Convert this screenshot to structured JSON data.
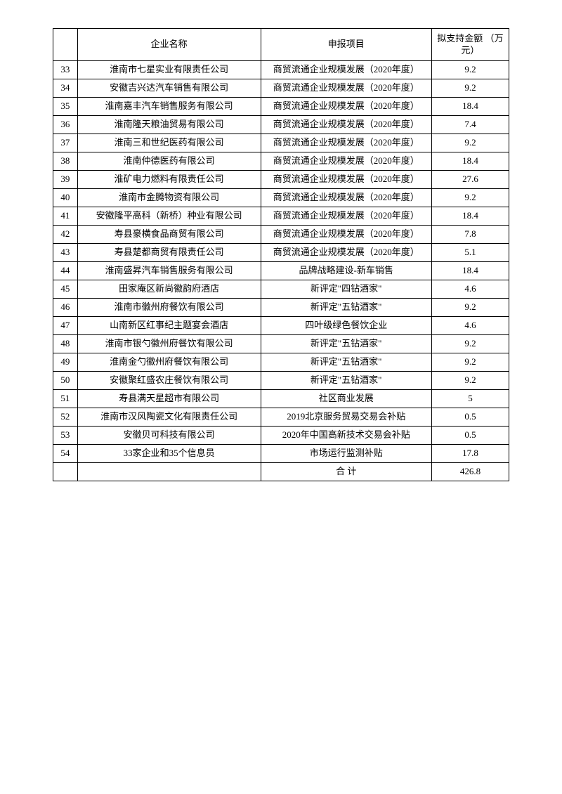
{
  "table": {
    "headers": {
      "index": "",
      "company": "企业名称",
      "project": "申报项目",
      "amount": "拟支持金额\n（万元）"
    },
    "rows": [
      {
        "index": "33",
        "company": "淮南市七星实业有限责任公司",
        "project": "商贸流通企业规模发展（2020年度）",
        "amount": "9.2"
      },
      {
        "index": "34",
        "company": "安徽吉兴达汽车销售有限公司",
        "project": "商贸流通企业规模发展（2020年度）",
        "amount": "9.2"
      },
      {
        "index": "35",
        "company": "淮南嘉丰汽车销售服务有限公司",
        "project": "商贸流通企业规模发展（2020年度）",
        "amount": "18.4"
      },
      {
        "index": "36",
        "company": "淮南隆天粮油贸易有限公司",
        "project": "商贸流通企业规模发展（2020年度）",
        "amount": "7.4"
      },
      {
        "index": "37",
        "company": "淮南三和世纪医药有限公司",
        "project": "商贸流通企业规模发展（2020年度）",
        "amount": "9.2"
      },
      {
        "index": "38",
        "company": "淮南仲德医药有限公司",
        "project": "商贸流通企业规模发展（2020年度）",
        "amount": "18.4"
      },
      {
        "index": "39",
        "company": "淮矿电力燃料有限责任公司",
        "project": "商贸流通企业规模发展（2020年度）",
        "amount": "27.6"
      },
      {
        "index": "40",
        "company": "淮南市金腾物资有限公司",
        "project": "商贸流通企业规模发展（2020年度）",
        "amount": "9.2"
      },
      {
        "index": "41",
        "company": "安徽隆平高科（新桥）种业有限公司",
        "project": "商贸流通企业规模发展（2020年度）",
        "amount": "18.4"
      },
      {
        "index": "42",
        "company": "寿县豪横食品商贸有限公司",
        "project": "商贸流通企业规模发展（2020年度）",
        "amount": "7.8"
      },
      {
        "index": "43",
        "company": "寿县楚都商贸有限责任公司",
        "project": "商贸流通企业规模发展（2020年度）",
        "amount": "5.1"
      },
      {
        "index": "44",
        "company": "淮南盛昇汽车销售服务有限公司",
        "project": "品牌战略建设-新车销售",
        "amount": "18.4"
      },
      {
        "index": "45",
        "company": "田家庵区新尚徽韵府酒店",
        "project": "新评定\"四钻酒家\"",
        "amount": "4.6"
      },
      {
        "index": "46",
        "company": "淮南市徽州府餐饮有限公司",
        "project": "新评定\"五钻酒家\"",
        "amount": "9.2"
      },
      {
        "index": "47",
        "company": "山南新区红事纪主题宴会酒店",
        "project": "四叶级绿色餐饮企业",
        "amount": "4.6"
      },
      {
        "index": "48",
        "company": "淮南市银勺徽州府餐饮有限公司",
        "project": "新评定\"五钻酒家\"",
        "amount": "9.2"
      },
      {
        "index": "49",
        "company": "淮南金勺徽州府餐饮有限公司",
        "project": "新评定\"五钻酒家\"",
        "amount": "9.2"
      },
      {
        "index": "50",
        "company": "安徽聚红盛农庄餐饮有限公司",
        "project": "新评定\"五钻酒家\"",
        "amount": "9.2"
      },
      {
        "index": "51",
        "company": "寿县满天星超市有限公司",
        "project": "社区商业发展",
        "amount": "5"
      },
      {
        "index": "52",
        "company": "淮南市汉风陶瓷文化有限责任公司",
        "project": "2019北京服务贸易交易会补贴",
        "amount": "0.5"
      },
      {
        "index": "53",
        "company": "安徽贝可科技有限公司",
        "project": "2020年中国高新技术交易会补贴",
        "amount": "0.5"
      },
      {
        "index": "54",
        "company": "33家企业和35个信息员",
        "project": "市场运行监测补贴",
        "amount": "17.8"
      }
    ],
    "total": {
      "label": "合 计",
      "amount": "426.8"
    }
  }
}
